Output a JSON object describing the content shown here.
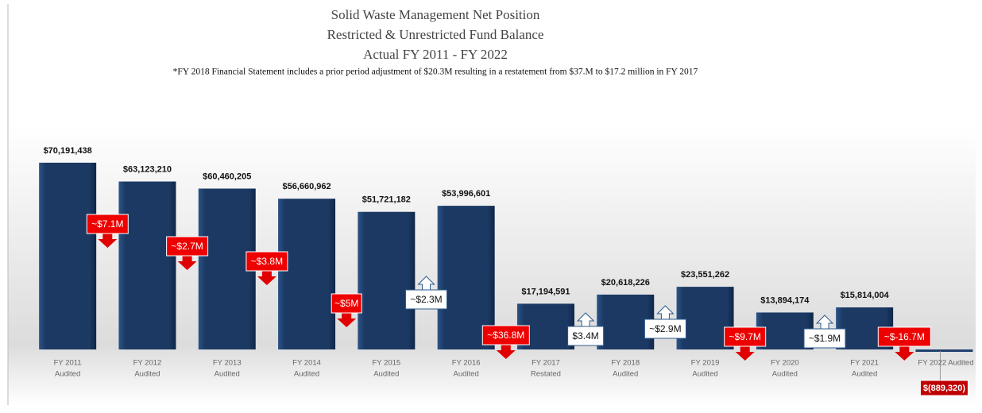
{
  "chart_data": {
    "type": "bar",
    "title": "Solid Waste Management Net Position",
    "title_line2": "Restricted & Unrestricted Fund Balance",
    "title_line3": "Actual FY 2011 - FY 2022",
    "subtitle": "*FY 2018 Financial Statement includes a prior period adjustment of $20.3M resulting in a restatement from $37.M to $17.2 million in FY 2017",
    "categories": [
      "FY 2011",
      "FY 2012",
      "FY 2013",
      "FY 2014",
      "FY 2015",
      "FY 2016",
      "FY 2017",
      "FY 2018",
      "FY 2019",
      "FY 2020",
      "FY 2021",
      "FY 2022 Audited"
    ],
    "category_notes": [
      "Audited",
      "Audited",
      "Audited",
      "Audited",
      "Audited",
      "Audited",
      "Restated",
      "Audited",
      "Audited",
      "Audited",
      "Audited",
      null
    ],
    "values": [
      70191438,
      63123210,
      60460205,
      56660962,
      51721182,
      53996601,
      17194591,
      20618226,
      23551262,
      13894174,
      15814004,
      -889320
    ],
    "value_labels": [
      "$70,191,438",
      "$63,123,210",
      "$60,460,205",
      "$56,660,962",
      "$51,721,182",
      "$53,996,601",
      "$17,194,591",
      "$20,618,226",
      "$23,551,262",
      "$13,894,174",
      "$15,814,004",
      "$(889,320)"
    ],
    "color": "#1f3f6e",
    "ylim": [
      -10000000,
      80000000
    ],
    "annotations": [
      {
        "text": "~$7.1M",
        "direction": "down"
      },
      {
        "text": "~$2.7M",
        "direction": "down"
      },
      {
        "text": "~$3.8M",
        "direction": "down"
      },
      {
        "text": "~$5M",
        "direction": "down"
      },
      {
        "text": "~$2.3M",
        "direction": "up"
      },
      {
        "text": "~$36.8M",
        "direction": "down"
      },
      {
        "text": "$3.4M",
        "direction": "up"
      },
      {
        "text": "~$2.9M",
        "direction": "up"
      },
      {
        "text": "~$9.7M",
        "direction": "down"
      },
      {
        "text": "~$1.9M",
        "direction": "up"
      },
      {
        "text": "~$-16.7M",
        "direction": "down"
      }
    ]
  }
}
